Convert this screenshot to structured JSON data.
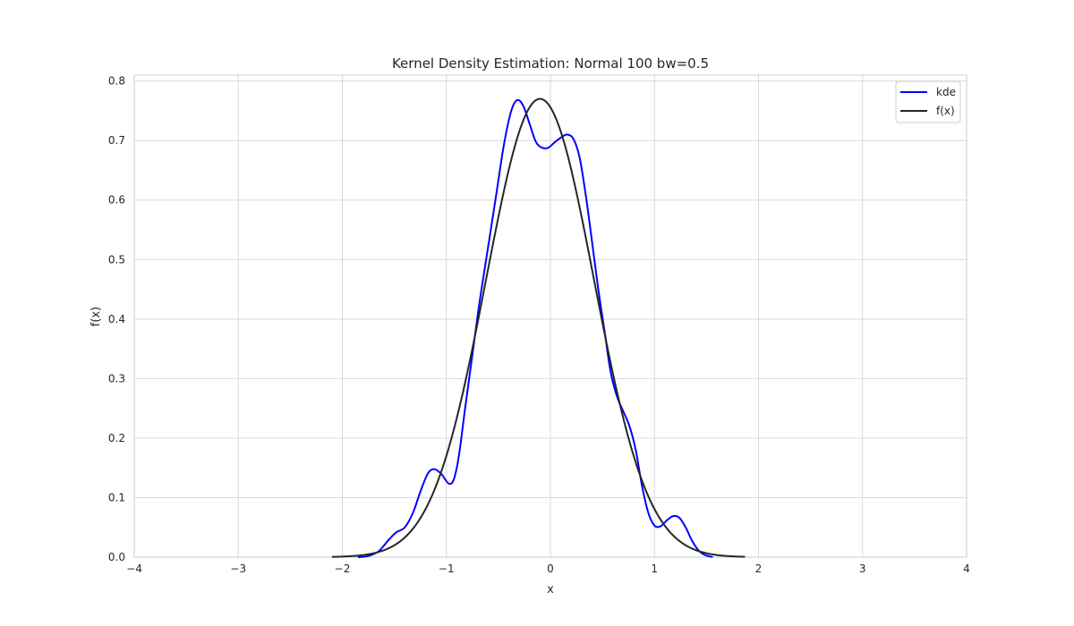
{
  "chart_data": {
    "type": "line",
    "title": "Kernel Density Estimation: Normal 100 bw=0.5",
    "xlabel": "x",
    "ylabel": "f(x)",
    "xlim": [
      -4,
      4
    ],
    "ylim": [
      0,
      0.81
    ],
    "x_ticks": [
      -4,
      -3,
      -2,
      -1,
      0,
      1,
      2,
      3,
      4
    ],
    "x_tick_labels": [
      "−4",
      "−3",
      "−2",
      "−1",
      "0",
      "1",
      "2",
      "3",
      "4"
    ],
    "y_ticks": [
      0,
      0.1,
      0.2,
      0.3,
      0.4,
      0.5,
      0.6,
      0.7,
      0.8
    ],
    "y_tick_labels": [
      "0.0",
      "0.1",
      "0.2",
      "0.3",
      "0.4",
      "0.5",
      "0.6",
      "0.7",
      "0.8"
    ],
    "grid": true,
    "legend_position": "top-right",
    "series": [
      {
        "name": "kde",
        "color": "#0000ff",
        "points": [
          [
            -1.85,
            0.0
          ],
          [
            -1.75,
            0.002
          ],
          [
            -1.65,
            0.01
          ],
          [
            -1.55,
            0.03
          ],
          [
            -1.48,
            0.042
          ],
          [
            -1.4,
            0.05
          ],
          [
            -1.32,
            0.075
          ],
          [
            -1.25,
            0.11
          ],
          [
            -1.18,
            0.14
          ],
          [
            -1.12,
            0.148
          ],
          [
            -1.05,
            0.14
          ],
          [
            -0.98,
            0.124
          ],
          [
            -0.93,
            0.13
          ],
          [
            -0.88,
            0.17
          ],
          [
            -0.82,
            0.25
          ],
          [
            -0.75,
            0.34
          ],
          [
            -0.68,
            0.43
          ],
          [
            -0.6,
            0.52
          ],
          [
            -0.52,
            0.61
          ],
          [
            -0.45,
            0.69
          ],
          [
            -0.38,
            0.748
          ],
          [
            -0.32,
            0.768
          ],
          [
            -0.26,
            0.758
          ],
          [
            -0.2,
            0.728
          ],
          [
            -0.14,
            0.698
          ],
          [
            -0.08,
            0.688
          ],
          [
            -0.02,
            0.688
          ],
          [
            0.04,
            0.697
          ],
          [
            0.1,
            0.705
          ],
          [
            0.16,
            0.71
          ],
          [
            0.22,
            0.703
          ],
          [
            0.28,
            0.672
          ],
          [
            0.34,
            0.608
          ],
          [
            0.4,
            0.53
          ],
          [
            0.46,
            0.45
          ],
          [
            0.52,
            0.38
          ],
          [
            0.58,
            0.31
          ],
          [
            0.64,
            0.27
          ],
          [
            0.7,
            0.245
          ],
          [
            0.76,
            0.22
          ],
          [
            0.82,
            0.18
          ],
          [
            0.88,
            0.12
          ],
          [
            0.94,
            0.075
          ],
          [
            1.0,
            0.053
          ],
          [
            1.06,
            0.052
          ],
          [
            1.12,
            0.062
          ],
          [
            1.18,
            0.069
          ],
          [
            1.24,
            0.066
          ],
          [
            1.3,
            0.05
          ],
          [
            1.36,
            0.028
          ],
          [
            1.42,
            0.012
          ],
          [
            1.48,
            0.004
          ],
          [
            1.56,
            0.0
          ]
        ]
      },
      {
        "name": "f(x)",
        "color": "#262626",
        "mean": -0.1,
        "sd": 0.518,
        "x_range": [
          -2.1,
          1.87
        ]
      }
    ]
  }
}
